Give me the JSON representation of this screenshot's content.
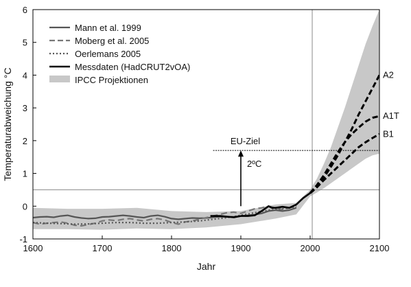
{
  "chart_data": {
    "type": "line",
    "xlabel": "Jahr",
    "ylabel": "Temperaturabweichung °C",
    "xlim": [
      1600,
      2100
    ],
    "ylim": [
      -1,
      6
    ],
    "x_ticks": [
      1600,
      1700,
      1800,
      1900,
      2000,
      2100
    ],
    "y_ticks": [
      -1,
      0,
      1,
      2,
      3,
      4,
      5,
      6
    ],
    "grid": false,
    "legend_position": "top-left",
    "series": [
      {
        "name": "Mann et al. 1999",
        "style": "solid",
        "color": "#555555",
        "x": [
          1600,
          1610,
          1620,
          1630,
          1640,
          1650,
          1660,
          1670,
          1680,
          1690,
          1700,
          1710,
          1720,
          1730,
          1740,
          1750,
          1760,
          1770,
          1780,
          1790,
          1800,
          1810,
          1820,
          1830,
          1840,
          1850,
          1860,
          1870,
          1880,
          1890,
          1900,
          1910,
          1920,
          1930,
          1940,
          1950,
          1960,
          1970,
          1980
        ],
        "y": [
          -0.35,
          -0.33,
          -0.32,
          -0.34,
          -0.3,
          -0.28,
          -0.33,
          -0.36,
          -0.38,
          -0.37,
          -0.33,
          -0.32,
          -0.3,
          -0.28,
          -0.3,
          -0.33,
          -0.35,
          -0.3,
          -0.28,
          -0.32,
          -0.38,
          -0.4,
          -0.38,
          -0.36,
          -0.37,
          -0.36,
          -0.34,
          -0.32,
          -0.33,
          -0.32,
          -0.3,
          -0.28,
          -0.26,
          -0.22,
          -0.15,
          -0.12,
          -0.15,
          -0.12,
          -0.05
        ]
      },
      {
        "name": "Moberg et al. 2005",
        "style": "dashed",
        "color": "#777777",
        "x": [
          1600,
          1610,
          1620,
          1630,
          1640,
          1650,
          1660,
          1670,
          1680,
          1690,
          1700,
          1710,
          1720,
          1730,
          1740,
          1750,
          1760,
          1770,
          1780,
          1790,
          1800,
          1810,
          1820,
          1830,
          1840,
          1850,
          1860,
          1870,
          1880,
          1890,
          1900,
          1910,
          1920,
          1930,
          1940,
          1950,
          1960,
          1970,
          1980
        ],
        "y": [
          -0.5,
          -0.55,
          -0.52,
          -0.5,
          -0.48,
          -0.52,
          -0.58,
          -0.6,
          -0.56,
          -0.52,
          -0.45,
          -0.42,
          -0.44,
          -0.4,
          -0.38,
          -0.42,
          -0.45,
          -0.4,
          -0.38,
          -0.42,
          -0.5,
          -0.55,
          -0.48,
          -0.45,
          -0.4,
          -0.35,
          -0.3,
          -0.25,
          -0.2,
          -0.18,
          -0.22,
          -0.15,
          -0.08,
          -0.05,
          0.0,
          -0.05,
          -0.1,
          -0.05,
          0.0
        ]
      },
      {
        "name": "Oerlemans 2005",
        "style": "dotted",
        "color": "#555555",
        "x": [
          1600,
          1620,
          1640,
          1660,
          1680,
          1700,
          1720,
          1740,
          1760,
          1780,
          1800,
          1820,
          1840,
          1860,
          1880,
          1900,
          1920,
          1940,
          1960,
          1980
        ],
        "y": [
          -0.5,
          -0.52,
          -0.53,
          -0.55,
          -0.54,
          -0.52,
          -0.5,
          -0.5,
          -0.52,
          -0.52,
          -0.5,
          -0.48,
          -0.45,
          -0.4,
          -0.35,
          -0.28,
          -0.2,
          -0.12,
          -0.08,
          -0.02
        ]
      },
      {
        "name": "Messdaten (HadCRUT2vOA)",
        "style": "solid-bold",
        "color": "#000000",
        "x": [
          1856,
          1870,
          1880,
          1890,
          1900,
          1910,
          1920,
          1930,
          1940,
          1945,
          1950,
          1960,
          1970,
          1980,
          1990,
          2000,
          2005
        ],
        "y": [
          -0.3,
          -0.3,
          -0.32,
          -0.34,
          -0.3,
          -0.3,
          -0.28,
          -0.15,
          0.0,
          -0.05,
          -0.05,
          -0.02,
          -0.05,
          0.05,
          0.25,
          0.4,
          0.48
        ]
      },
      {
        "name": "A2",
        "style": "bold-dashed",
        "color": "#000000",
        "x": [
          2000,
          2010,
          2020,
          2030,
          2040,
          2050,
          2060,
          2070,
          2080,
          2090,
          2100
        ],
        "y": [
          0.4,
          0.62,
          0.88,
          1.2,
          1.55,
          1.95,
          2.35,
          2.8,
          3.2,
          3.6,
          4.0
        ]
      },
      {
        "name": "A1T",
        "style": "bold-dashed",
        "color": "#000000",
        "x": [
          2000,
          2010,
          2020,
          2030,
          2040,
          2050,
          2060,
          2070,
          2080,
          2090,
          2100
        ],
        "y": [
          0.4,
          0.65,
          0.95,
          1.3,
          1.65,
          1.95,
          2.2,
          2.4,
          2.58,
          2.7,
          2.75
        ]
      },
      {
        "name": "B1",
        "style": "bold-dashed",
        "color": "#000000",
        "x": [
          2000,
          2010,
          2020,
          2030,
          2040,
          2050,
          2060,
          2070,
          2080,
          2090,
          2100
        ],
        "y": [
          0.4,
          0.58,
          0.8,
          1.0,
          1.2,
          1.4,
          1.6,
          1.8,
          1.95,
          2.08,
          2.2
        ]
      }
    ],
    "uncertainty_band": {
      "name": "IPCC Projektionen",
      "color": "#c8c8c8",
      "x": [
        1600,
        1650,
        1700,
        1750,
        1800,
        1850,
        1900,
        1950,
        1980,
        2000,
        2010,
        2020,
        2030,
        2040,
        2050,
        2060,
        2070,
        2080,
        2090,
        2100
      ],
      "upper": [
        -0.05,
        -0.08,
        -0.08,
        -0.05,
        -0.15,
        -0.18,
        -0.15,
        0.05,
        0.1,
        0.5,
        0.85,
        1.3,
        1.8,
        2.4,
        3.0,
        3.65,
        4.3,
        4.95,
        5.5,
        6.0
      ],
      "lower": [
        -0.7,
        -0.7,
        -0.72,
        -0.68,
        -0.7,
        -0.65,
        -0.55,
        -0.38,
        -0.25,
        0.3,
        0.42,
        0.55,
        0.7,
        0.85,
        1.0,
        1.15,
        1.3,
        1.45,
        1.55,
        1.6
      ]
    },
    "reference_lines": {
      "baseline_y": 0.5,
      "target_y": 1.7,
      "target_from_x": 1860,
      "present_x": 2003
    },
    "annotations": {
      "target_label": "EU-Ziel",
      "delta_label": "2ºC",
      "arrow_x": 1900,
      "arrow_from_y": 0.0,
      "arrow_to_y": 1.7,
      "end_labels": [
        {
          "text": "A2",
          "y": 4.0
        },
        {
          "text": "A1T",
          "y": 2.75
        },
        {
          "text": "B1",
          "y": 2.2
        }
      ]
    }
  }
}
